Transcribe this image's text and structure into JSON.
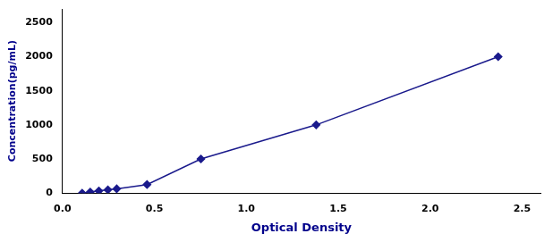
{
  "chart_data": {
    "type": "line",
    "x": [
      0.107,
      0.151,
      0.198,
      0.247,
      0.295,
      0.46,
      0.753,
      1.38,
      2.37
    ],
    "values": [
      0,
      15.6,
      31.25,
      46.9,
      62.5,
      125,
      500,
      1000,
      2000
    ],
    "color": "#1a1a8c",
    "marker": "diamond",
    "xlabel": "Optical Density",
    "ylabel": "Concentration(pg/mL)",
    "xlim": [
      0,
      2.6
    ],
    "ylim": [
      0,
      2700
    ],
    "xticks": [
      {
        "value": 0,
        "label": "0.0"
      },
      {
        "value": 0.5,
        "label": "0.5"
      },
      {
        "value": 1,
        "label": "1.0"
      },
      {
        "value": 1.5,
        "label": "1.5"
      },
      {
        "value": 2,
        "label": "2.0"
      },
      {
        "value": 2.5,
        "label": "2.5"
      }
    ],
    "yticks": [
      0,
      500,
      1000,
      1500,
      2000,
      2500
    ],
    "grid": false
  }
}
